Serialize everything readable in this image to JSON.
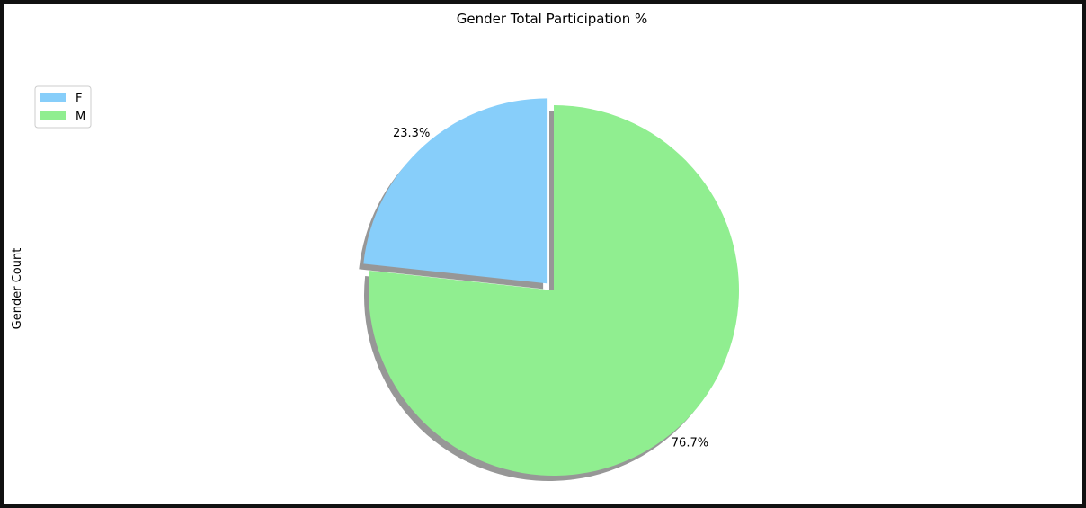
{
  "chart_data": {
    "type": "pie",
    "title": "Gender Total Participation %",
    "ylabel": "Gender Count",
    "labels": [
      "F",
      "M"
    ],
    "values": [
      23.3,
      76.7
    ],
    "pct_labels": [
      "23.3%",
      "76.7%"
    ],
    "colors": [
      "#87CEFA",
      "#90EE90"
    ],
    "explode": [
      0.05,
      0
    ],
    "shadow": true,
    "start_angle": 90,
    "legend": "upper-left"
  }
}
